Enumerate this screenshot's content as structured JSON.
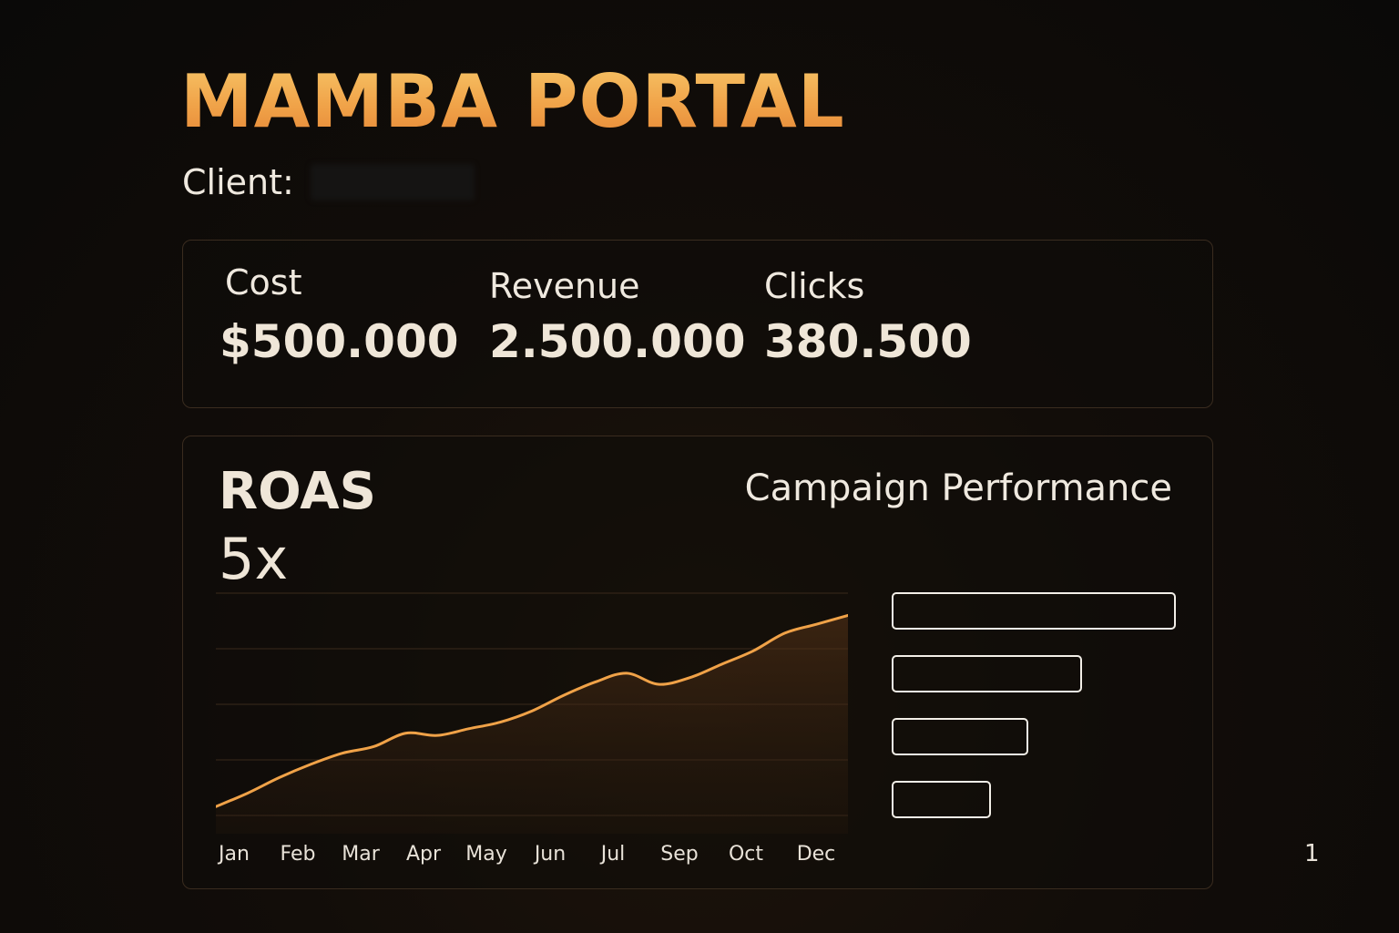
{
  "header": {
    "title": "MAMBA PORTAL"
  },
  "client": {
    "label": "Client:",
    "value": ""
  },
  "kpis": [
    {
      "label": "Cost",
      "value": "$500.000"
    },
    {
      "label": "Revenue",
      "value": "2.500.000"
    },
    {
      "label": "Clicks",
      "value": "380.500"
    }
  ],
  "roas": {
    "label": "ROAS",
    "value": "5x"
  },
  "campaign_performance": {
    "title": "Campaign Performance",
    "bar_fractions": [
      1.0,
      0.67,
      0.48,
      0.35
    ]
  },
  "colors": {
    "accent": "#f0a248",
    "bar_outline": "#f3efe8",
    "card_border": "#3a2c1f"
  },
  "page_number": "1",
  "chart_data": {
    "type": "area",
    "x": [
      "Jan",
      "",
      "Feb",
      "",
      "Mar",
      "",
      "Apr",
      "",
      "May",
      "",
      "Jun",
      "",
      "Jul",
      "",
      "",
      "Sep",
      "",
      "Oct",
      "",
      "Dec",
      ""
    ],
    "xticks": [
      "Jan",
      "Feb",
      "Mar",
      "Apr",
      "May",
      "Jun",
      "Jul",
      "Sep",
      "Oct",
      "Dec"
    ],
    "values": [
      0.4,
      1.0,
      1.7,
      2.3,
      2.8,
      3.1,
      3.7,
      3.6,
      3.9,
      4.2,
      4.7,
      5.4,
      6.0,
      6.4,
      5.9,
      6.2,
      6.8,
      7.4,
      8.2,
      8.6,
      9.0
    ],
    "ylim": [
      0,
      10
    ],
    "grid": true,
    "title": "",
    "xlabel": "",
    "ylabel": ""
  }
}
